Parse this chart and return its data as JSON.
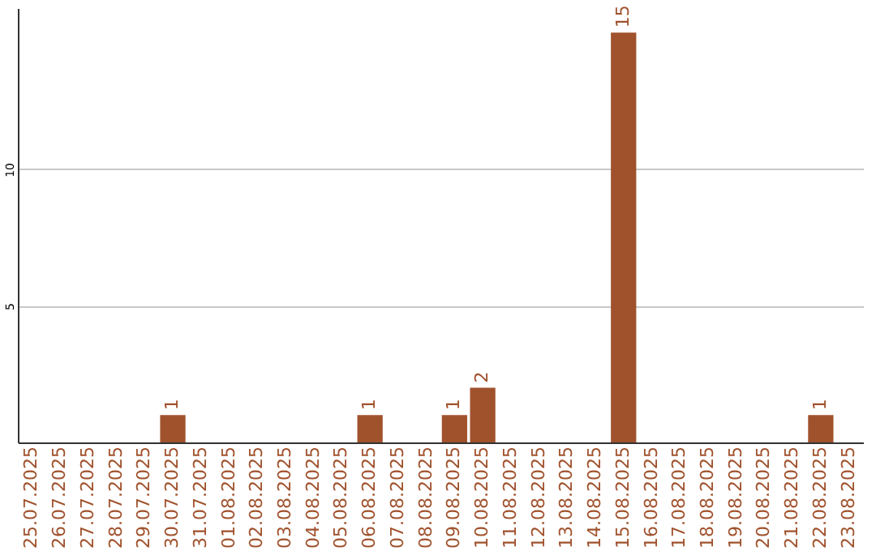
{
  "chart_data": {
    "type": "bar",
    "categories": [
      "25.07.2025",
      "26.07.2025",
      "27.07.2025",
      "28.07.2025",
      "29.07.2025",
      "30.07.2025",
      "31.07.2025",
      "01.08.2025",
      "02.08.2025",
      "03.08.2025",
      "04.08.2025",
      "05.08.2025",
      "06.08.2025",
      "07.08.2025",
      "08.08.2025",
      "09.08.2025",
      "10.08.2025",
      "11.08.2025",
      "12.08.2025",
      "13.08.2025",
      "14.08.2025",
      "15.08.2025",
      "16.08.2025",
      "17.08.2025",
      "18.08.2025",
      "19.08.2025",
      "20.08.2025",
      "21.08.2025",
      "22.08.2025",
      "23.08.2025"
    ],
    "values": [
      0,
      0,
      0,
      0,
      0,
      1,
      0,
      0,
      0,
      0,
      0,
      0,
      1,
      0,
      0,
      1,
      2,
      0,
      0,
      0,
      0,
      15,
      0,
      0,
      0,
      0,
      0,
      0,
      1,
      0
    ],
    "value_labels": [
      null,
      null,
      null,
      null,
      null,
      "1",
      null,
      null,
      null,
      null,
      null,
      null,
      "1",
      null,
      null,
      "1",
      "2",
      null,
      null,
      null,
      null,
      "15",
      null,
      null,
      null,
      null,
      null,
      null,
      "1",
      null
    ],
    "color": "#a0522d",
    "ylim": [
      0,
      15.9
    ],
    "yticks": [
      5,
      10
    ],
    "grid": "y"
  }
}
